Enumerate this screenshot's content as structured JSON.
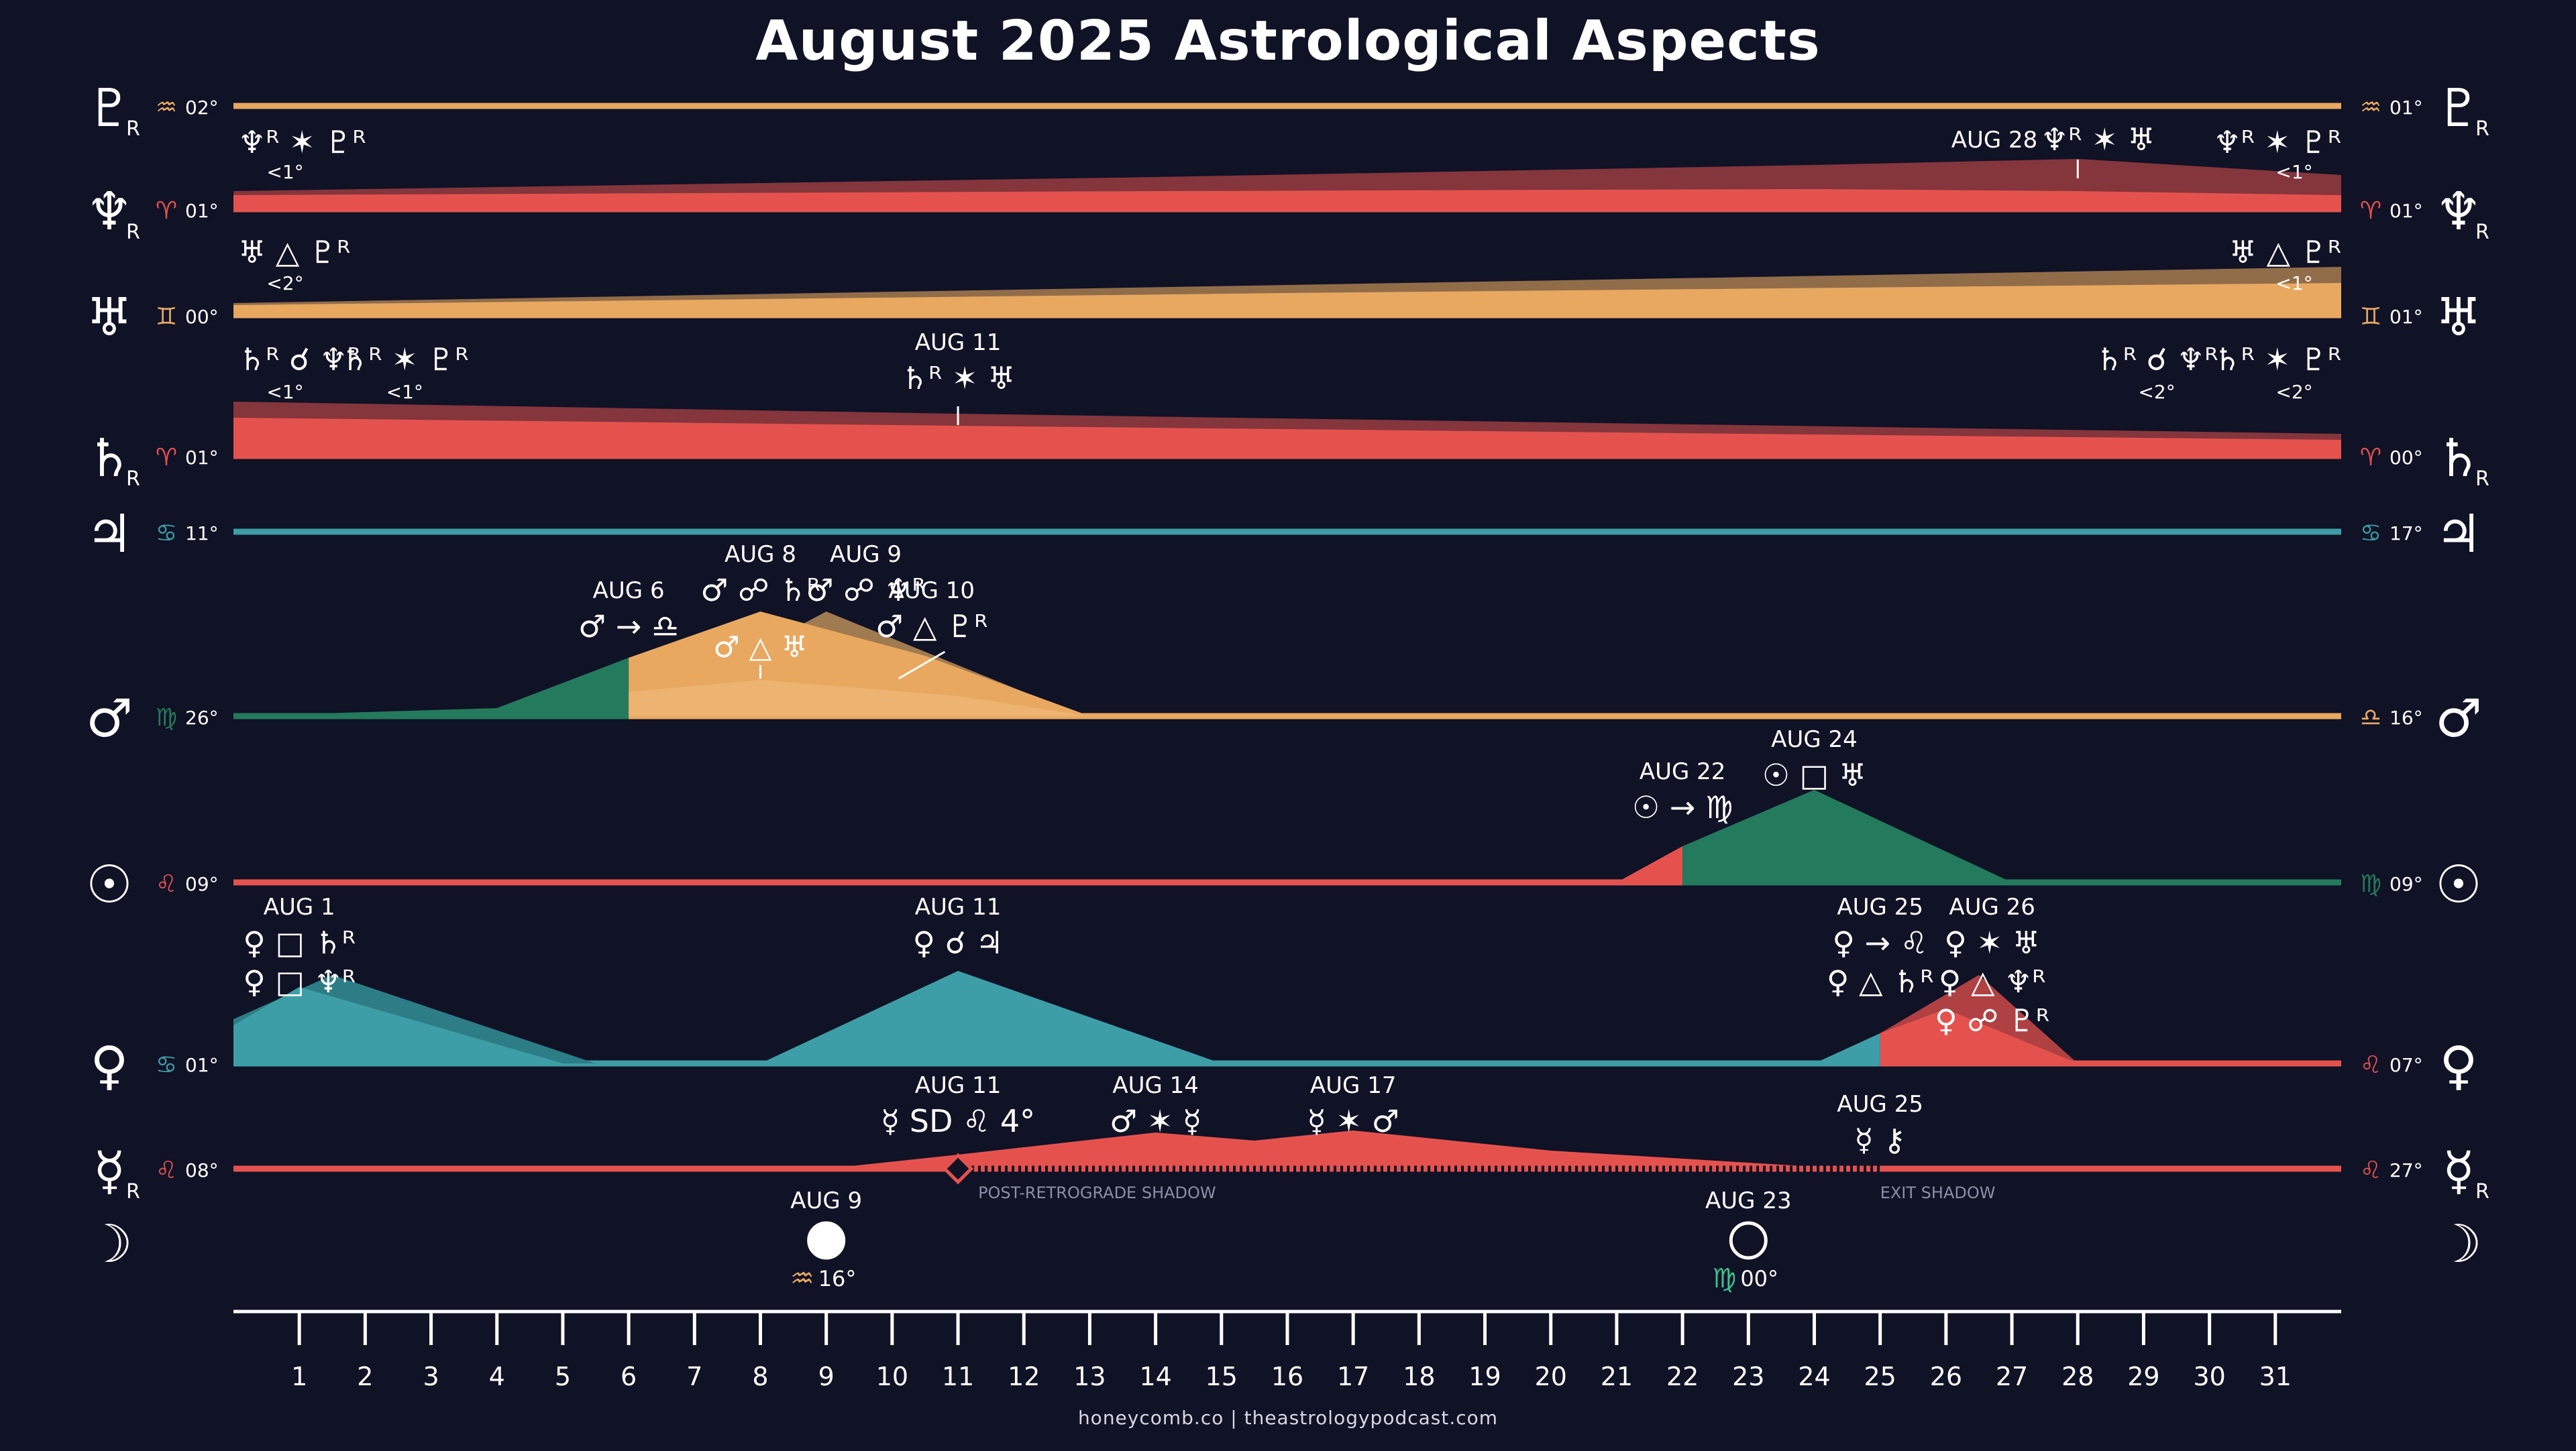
{
  "title": "August 2025 Astrological Aspects",
  "footer": "honeycomb.co | theastrologypodcast.com",
  "colors": {
    "background": "#101226",
    "orange": "#e8a860",
    "red": "#e5524e",
    "teal": "#3e9ea7",
    "green": "#247a5c",
    "white": "#ffffff"
  },
  "chart_data": {
    "type": "area",
    "title": "August 2025 Astrological Aspects",
    "x": [
      1,
      2,
      3,
      4,
      5,
      6,
      7,
      8,
      9,
      10,
      11,
      12,
      13,
      14,
      15,
      16,
      17,
      18,
      19,
      20,
      21,
      22,
      23,
      24,
      25,
      26,
      27,
      28,
      29,
      30,
      31
    ],
    "xlim": [
      0,
      32
    ],
    "planets": [
      {
        "name": "Pluto",
        "glyph": "♇",
        "retro": "R",
        "start": {
          "sign": "♒",
          "deg": "02°",
          "color": "#e8a860"
        },
        "end": {
          "sign": "♒",
          "deg": "01°",
          "color": "#e8a860"
        },
        "bands": [],
        "aspects": []
      },
      {
        "name": "Neptune",
        "glyph": "♆",
        "retro": "R",
        "start": {
          "sign": "♈",
          "deg": "01°",
          "color": "#e5524e"
        },
        "end": {
          "sign": "♈",
          "deg": "01°",
          "color": "#e5524e"
        },
        "bands": [
          {
            "color": "#e5524e",
            "opacity": 0.55,
            "x": [
              0,
              14,
              24,
              28,
              32
            ],
            "h": [
              0.45,
              0.8,
              1.1,
              1.25,
              0.85
            ]
          },
          {
            "color": "#e5524e",
            "opacity": 1.0,
            "x": [
              0,
              14,
              24,
              28,
              32
            ],
            "h": [
              0.35,
              0.45,
              0.5,
              0.45,
              0.35
            ]
          }
        ],
        "aspects": [
          {
            "date": "",
            "text": "♆ᴿ ✶ ♇ᴿ",
            "sub": "<1°",
            "x": 1,
            "align": "start"
          },
          {
            "date": "AUG 28",
            "text": "♆ᴿ ✶ ♅",
            "sub": "",
            "x": 28,
            "align": "middle",
            "tick": true
          },
          {
            "date": "",
            "text": "♆ᴿ ✶ ♇ᴿ",
            "sub": "<1°",
            "x": 31,
            "align": "end"
          }
        ]
      },
      {
        "name": "Uranus",
        "glyph": "♅",
        "retro": "",
        "start": {
          "sign": "♊",
          "deg": "00°",
          "color": "#e8a860"
        },
        "end": {
          "sign": "♊",
          "deg": "01°",
          "color": "#e8a860"
        },
        "bands": [
          {
            "color": "#e8a860",
            "opacity": 0.6,
            "x": [
              0,
              16,
              32
            ],
            "h": [
              0.3,
              0.75,
              1.2
            ]
          },
          {
            "color": "#e8a860",
            "opacity": 1.0,
            "x": [
              0,
              16,
              32
            ],
            "h": [
              0.25,
              0.55,
              0.8
            ]
          }
        ],
        "aspects": [
          {
            "date": "",
            "text": "♅ △ ♇ᴿ",
            "sub": "<2°",
            "x": 1,
            "align": "start"
          },
          {
            "date": "",
            "text": "♅ △ ♇ᴿ",
            "sub": "<1°",
            "x": 31,
            "align": "end"
          }
        ]
      },
      {
        "name": "Saturn",
        "glyph": "♄",
        "retro": "R",
        "start": {
          "sign": "♈",
          "deg": "01°",
          "color": "#e5524e"
        },
        "end": {
          "sign": "♈",
          "deg": "00°",
          "color": "#e5524e"
        },
        "bands": [
          {
            "color": "#e5524e",
            "opacity": 0.55,
            "x": [
              0,
              11,
              32
            ],
            "h": [
              1.35,
              1.05,
              0.55
            ]
          },
          {
            "color": "#e5524e",
            "opacity": 1.0,
            "x": [
              0,
              11,
              32
            ],
            "h": [
              0.95,
              0.75,
              0.4
            ]
          }
        ],
        "aspects": [
          {
            "date": "",
            "text": "♄ᴿ ☌ ♆ᴿ",
            "sub": "<1°",
            "x": 1,
            "align": "start"
          },
          {
            "date": "",
            "text": "♄ᴿ ✶ ♇ᴿ",
            "sub": "<1°",
            "x": 2.6,
            "align": "middle"
          },
          {
            "date": "AUG 11",
            "text": "♄ᴿ ✶ ♅",
            "sub": "",
            "x": 11,
            "align": "middle",
            "tick": true
          },
          {
            "date": "",
            "text": "♄ᴿ ☌ ♆ᴿ",
            "sub": "<2°",
            "x": 29.2,
            "align": "middle"
          },
          {
            "date": "",
            "text": "♄ᴿ ✶ ♇ᴿ",
            "sub": "<2°",
            "x": 31,
            "align": "end"
          }
        ]
      },
      {
        "name": "Jupiter",
        "glyph": "♃",
        "retro": "",
        "start": {
          "sign": "♋",
          "deg": "11°",
          "color": "#3e9ea7"
        },
        "end": {
          "sign": "♋",
          "deg": "17°",
          "color": "#3e9ea7"
        },
        "bands": [],
        "aspects": []
      },
      {
        "name": "Mars",
        "glyph": "♂",
        "retro": "",
        "start": {
          "sign": "♍",
          "deg": "26°",
          "color": "#247a5c"
        },
        "end": {
          "sign": "♎",
          "deg": "16°",
          "color": "#e8a860"
        },
        "bands": [
          {
            "color": "#247a5c",
            "opacity": 1.0,
            "x": [
              0,
              4,
              6,
              6
            ],
            "h": [
              0,
              0.2,
              1.45,
              0
            ]
          },
          {
            "color": "#b08657",
            "opacity": 0.9,
            "x": [
              6,
              9,
              12,
              13
            ],
            "h": [
              0,
              2.6,
              0.6,
              0
            ]
          },
          {
            "color": "#e8a860",
            "opacity": 1.0,
            "x": [
              6,
              8,
              10.5,
              13
            ],
            "h": [
              1.45,
              2.6,
              1.5,
              0
            ]
          },
          {
            "color": "#f0b877",
            "opacity": 0.7,
            "x": [
              6,
              8,
              11,
              13
            ],
            "h": [
              0.6,
              0.9,
              0.5,
              0
            ]
          }
        ],
        "aspects": [
          {
            "date": "AUG 6",
            "text": "♂ → ♎",
            "sub": "",
            "x": 6,
            "align": "middle"
          },
          {
            "date": "AUG 8",
            "text": "♂ ☍ ♄ᴿ",
            "sub": "",
            "x": 8,
            "align": "middle"
          },
          {
            "date": "AUG 9",
            "text": "♂ ☍ ♆ᴿ",
            "sub": "",
            "x": 9.6,
            "align": "middle"
          },
          {
            "date": "AUG 10",
            "text": "♂ △ ♇ᴿ",
            "sub": "",
            "x": 10.6,
            "align": "middle",
            "slash": true
          },
          {
            "date": "",
            "text": "♂ △ ♅",
            "sub": "",
            "x": 8,
            "align": "middle",
            "inner": true
          }
        ]
      },
      {
        "name": "Sun",
        "glyph": "☉",
        "retro": "",
        "start": {
          "sign": "♌",
          "deg": "09°",
          "color": "#e5524e"
        },
        "end": {
          "sign": "♍",
          "deg": "09°",
          "color": "#247a5c"
        },
        "bands": [
          {
            "color": "#e5524e",
            "opacity": 1.0,
            "x": [
              21,
              22,
              22
            ],
            "h": [
              0,
              0.9,
              0
            ]
          },
          {
            "color": "#247a5c",
            "opacity": 1.0,
            "x": [
              22,
              24,
              27,
              32
            ],
            "h": [
              0.9,
              2.3,
              0,
              0
            ]
          }
        ],
        "aspects": [
          {
            "date": "AUG 22",
            "text": "☉ → ♍",
            "sub": "",
            "x": 22,
            "align": "middle"
          },
          {
            "date": "AUG 24",
            "text": "☉ □ ♅",
            "sub": "",
            "x": 24,
            "align": "middle"
          }
        ]
      },
      {
        "name": "Venus",
        "glyph": "♀",
        "retro": "",
        "start": {
          "sign": "♋",
          "deg": "01°",
          "color": "#3e9ea7"
        },
        "end": {
          "sign": "♌",
          "deg": "07°",
          "color": "#e5524e"
        },
        "bands": [
          {
            "color": "#2d7d86",
            "opacity": 1.0,
            "x": [
              0,
              1.5,
              5.5
            ],
            "h": [
              1.1,
              2.2,
              0
            ]
          },
          {
            "color": "#3e9ea7",
            "opacity": 1.0,
            "x": [
              0,
              1,
              5,
              8,
              11,
              15,
              24,
              25,
              25
            ],
            "h": [
              0.95,
              1.9,
              0,
              0,
              2.3,
              0,
              0,
              0.75,
              0
            ]
          },
          {
            "color": "#e5524e",
            "opacity": 0.75,
            "x": [
              25,
              26.5,
              28
            ],
            "h": [
              0.75,
              2.2,
              0
            ]
          },
          {
            "color": "#e5524e",
            "opacity": 1.0,
            "x": [
              25,
              26,
              28
            ],
            "h": [
              0.75,
              1.35,
              0
            ]
          }
        ],
        "aspects": [
          {
            "date": "AUG 1",
            "text": "♀ □ ♄ᴿ",
            "sub": "♀ □ ♆ᴿ",
            "x": 1,
            "align": "middle",
            "stack": true
          },
          {
            "date": "AUG 11",
            "text": "♀ ☌ ♃",
            "sub": "",
            "x": 11,
            "align": "middle"
          },
          {
            "date": "AUG 25",
            "text": "♀ → ♌",
            "sub": "♀ △ ♄ᴿ",
            "x": 25,
            "align": "middle",
            "stack": true
          },
          {
            "date": "AUG 26",
            "text": "♀ ✶ ♅",
            "sub": "♀ △ ♆ᴿ",
            "x": 26.7,
            "align": "middle",
            "stack": true,
            "third": "♀ ☍ ♇ᴿ"
          }
        ]
      },
      {
        "name": "Mercury",
        "glyph": "☿",
        "retro": "R",
        "start": {
          "sign": "♌",
          "deg": "08°",
          "color": "#e5524e"
        },
        "end": {
          "sign": "♌",
          "deg": "27°",
          "color": "#e5524e"
        },
        "bands": [
          {
            "color": "#e5524e",
            "opacity": 1.0,
            "x": [
              9,
              11,
              14,
              15.5,
              17,
              20,
              24.5
            ],
            "h": [
              0,
              0.35,
              0.9,
              0.7,
              0.95,
              0.45,
              0
            ]
          }
        ],
        "shadow": {
          "start": 11,
          "end": 25,
          "label_start": "POST-RETROGRADE SHADOW",
          "label_end": "EXIT SHADOW"
        },
        "aspects": [
          {
            "date": "AUG 11",
            "text": "☿ SD ♌ 4°",
            "sub": "",
            "x": 11,
            "align": "middle"
          },
          {
            "date": "AUG 14",
            "text": "♂ ✶ ☿",
            "sub": "",
            "x": 14,
            "align": "middle"
          },
          {
            "date": "AUG 17",
            "text": "☿ ✶ ♂",
            "sub": "",
            "x": 17,
            "align": "middle"
          },
          {
            "date": "AUG 25",
            "text": "☿ ⚷",
            "sub": "",
            "x": 25,
            "align": "middle"
          }
        ]
      },
      {
        "name": "Moon",
        "glyph": "☽",
        "retro": "",
        "phases": [
          {
            "date": "AUG 9",
            "type": "full",
            "sign": "♒",
            "deg": "16°",
            "x": 9,
            "color": "#e8a860"
          },
          {
            "date": "AUG 23",
            "type": "new",
            "sign": "♍",
            "deg": "00°",
            "x": 23,
            "color": "#3fbf8f"
          }
        ]
      }
    ]
  }
}
